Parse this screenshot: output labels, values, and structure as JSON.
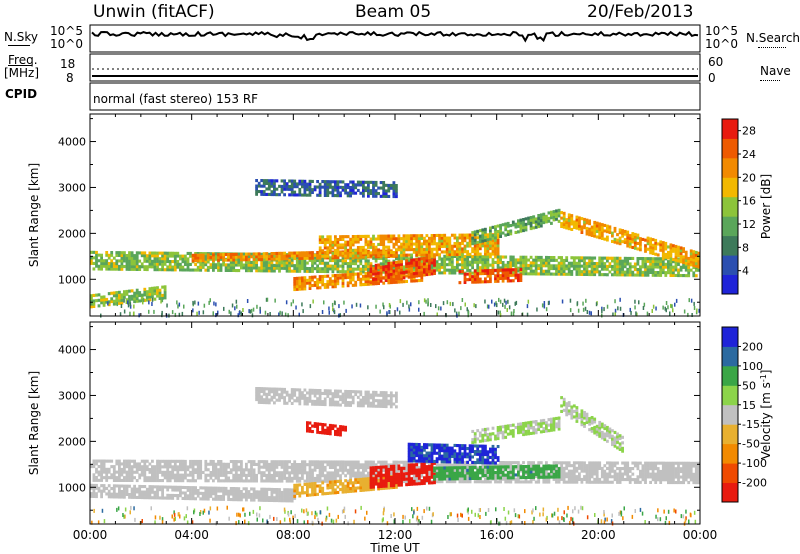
{
  "header": {
    "station": "Unwin (fitACF)",
    "beam": "Beam 05",
    "date": "20/Feb/2013"
  },
  "top_panels": {
    "nsky_label": "N.Sky",
    "nsky_ticks": [
      "10^5",
      "10^0"
    ],
    "nsearch_label": "N.Search",
    "nsearch_ticks": [
      "10^5",
      "10^0"
    ],
    "freq_label": "Freq.",
    "freq_unit": "[MHz]",
    "freq_ticks": [
      "18",
      "8"
    ],
    "nave_label": "Nave",
    "nave_ticks": [
      "60",
      "0"
    ],
    "cpid_label": "CPID",
    "cpid_text": "normal (fast stereo) 153 RF"
  },
  "chart_data": [
    {
      "type": "heatmap",
      "panel": "power",
      "ylabel": "Slant Range [km]",
      "xlabel": "",
      "ylim": [
        200,
        4600
      ],
      "yticks": [
        "1000",
        "2000",
        "3000",
        "4000"
      ],
      "xlim": [
        0,
        24
      ],
      "colorbar_label": "Power [dB]",
      "colorbar_ticks": [
        "28",
        "24",
        "20",
        "16",
        "12",
        "8",
        "4"
      ],
      "colorbar_range": [
        0,
        30
      ],
      "colors": [
        "#1f24d8",
        "#2b4fb0",
        "#3d7a5a",
        "#5aa65a",
        "#8cc43a",
        "#f2b800",
        "#f28a00",
        "#ee5a00",
        "#e81b0f"
      ],
      "bands": [
        {
          "t": [
            0,
            24
          ],
          "center": 1400,
          "center_end": 1250,
          "width": 400,
          "value": 14
        },
        {
          "t": [
            4,
            12
          ],
          "center": 1450,
          "center_end": 1550,
          "width": 150,
          "value": 22
        },
        {
          "t": [
            6.5,
            12
          ],
          "center": 3000,
          "center_end": 2950,
          "width": 350,
          "value": 6
        },
        {
          "t": [
            9,
            16
          ],
          "center": 1700,
          "center_end": 1750,
          "width": 450,
          "value": 20
        },
        {
          "t": [
            8,
            13
          ],
          "center": 900,
          "center_end": 1100,
          "width": 300,
          "value": 22
        },
        {
          "t": [
            11,
            13.5
          ],
          "center": 1100,
          "center_end": 1300,
          "width": 400,
          "value": 26
        },
        {
          "t": [
            14.5,
            17
          ],
          "center": 1050,
          "center_end": 1100,
          "width": 300,
          "value": 26
        },
        {
          "t": [
            15,
            18.5
          ],
          "center": 1900,
          "center_end": 2400,
          "width": 300,
          "value": 12
        },
        {
          "t": [
            18.5,
            24
          ],
          "center": 2300,
          "center_end": 1400,
          "width": 350,
          "value": 20
        },
        {
          "t": [
            0,
            3
          ],
          "center": 500,
          "center_end": 700,
          "width": 250,
          "value": 14
        }
      ]
    },
    {
      "type": "heatmap",
      "panel": "velocity",
      "ylabel": "Slant Range [km]",
      "xlabel": "Time UT",
      "ylim": [
        200,
        4600
      ],
      "yticks": [
        "1000",
        "2000",
        "3000",
        "4000"
      ],
      "xlim": [
        0,
        24
      ],
      "xticks": [
        "00:00",
        "04:00",
        "08:00",
        "12:00",
        "16:00",
        "20:00",
        "00:00"
      ],
      "colorbar_label": "Velocity [m s",
      "colorbar_unit_exp": "-1",
      "colorbar_unit_close": "]",
      "colorbar_ticks": [
        "200",
        "100",
        "50",
        "15",
        "-15",
        "-50",
        "-100",
        "-200"
      ],
      "colorbar_range": [
        -250,
        250
      ],
      "colors": [
        "#e81b0f",
        "#ef4a00",
        "#f28a00",
        "#e8b030",
        "#c0c0c0",
        "#8cd44a",
        "#3aa646",
        "#2b6aa0",
        "#1f24d8"
      ],
      "bands": [
        {
          "t": [
            0,
            24
          ],
          "center": 1350,
          "center_end": 1300,
          "width": 450,
          "value": 0
        },
        {
          "t": [
            0,
            8
          ],
          "center": 900,
          "center_end": 800,
          "width": 250,
          "value": 0
        },
        {
          "t": [
            6.5,
            12
          ],
          "center": 3000,
          "center_end": 2900,
          "width": 350,
          "value": 0
        },
        {
          "t": [
            8.5,
            10
          ],
          "center": 2300,
          "center_end": 2200,
          "width": 200,
          "value": -230
        },
        {
          "t": [
            8,
            12
          ],
          "center": 900,
          "center_end": 1100,
          "width": 250,
          "value": -70
        },
        {
          "t": [
            11,
            13.5
          ],
          "center": 1200,
          "center_end": 1300,
          "width": 450,
          "value": -220
        },
        {
          "t": [
            12.5,
            16
          ],
          "center": 1750,
          "center_end": 1700,
          "width": 400,
          "value": 200
        },
        {
          "t": [
            13.5,
            18.5
          ],
          "center": 1300,
          "center_end": 1350,
          "width": 300,
          "value": 120
        },
        {
          "t": [
            15,
            18.5
          ],
          "center": 2100,
          "center_end": 2400,
          "width": 300,
          "value": 30
        },
        {
          "t": [
            18.5,
            21
          ],
          "center": 2800,
          "center_end": 1900,
          "width": 350,
          "value": 25
        }
      ]
    }
  ]
}
